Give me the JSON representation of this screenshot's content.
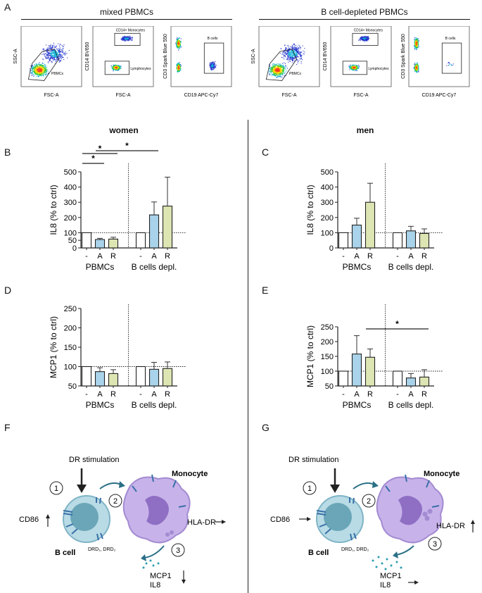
{
  "panel_letters": {
    "A": "A",
    "B": "B",
    "C": "C",
    "D": "D",
    "E": "E",
    "F": "F",
    "G": "G"
  },
  "flow": {
    "left_title": "mixed PBMCs",
    "right_title": "B cell-depleted PBMCs",
    "plots": [
      {
        "x_label": "FSC-A",
        "y_label": "SSC-A",
        "gate_label": "PBMCs"
      },
      {
        "x_label": "FSC-A",
        "y_label": "CD14 BV650",
        "gate_label": "CD14+ Monocytes",
        "gate_label2": "Lymphocytes"
      },
      {
        "x_label": "CD19 APC-Cy7",
        "y_label": "CD3 Spark Blue 550",
        "gate_label": "B cells"
      },
      {
        "x_label": "FSC-A",
        "y_label": "SSC-A",
        "gate_label": "PBMCs"
      },
      {
        "x_label": "FSC-A",
        "y_label": "CD14 BV650",
        "gate_label": "CD14+ Monocytes",
        "gate_label2": "Lymphocytes"
      },
      {
        "x_label": "CD19 APC-Cy7",
        "y_label": "CD3 Spark Blue 550",
        "gate_label": "B cells"
      }
    ]
  },
  "sex_labels": {
    "women": "women",
    "men": "men"
  },
  "chart_data": [
    {
      "panel": "B",
      "type": "bar",
      "ylabel": "IL8 (% to ctrl)",
      "ylim": [
        0,
        500
      ],
      "yticks": [
        0,
        50,
        100,
        200,
        300,
        400,
        500
      ],
      "categories": [
        "-",
        "A",
        "R",
        "-",
        "A",
        "R"
      ],
      "groups": [
        "PBMCs",
        "B cells depl."
      ],
      "values": [
        100,
        55,
        58,
        100,
        217,
        275
      ],
      "errors": [
        0,
        8,
        12,
        0,
        85,
        190
      ],
      "significance": [
        "*",
        "*",
        "*"
      ]
    },
    {
      "panel": "C",
      "type": "bar",
      "ylabel": "IL8 (% to ctrl)",
      "ylim": [
        0,
        500
      ],
      "yticks": [
        0,
        100,
        200,
        300,
        400,
        500
      ],
      "categories": [
        "-",
        "A",
        "R",
        "-",
        "A",
        "R"
      ],
      "groups": [
        "PBMCs",
        "B cells depl."
      ],
      "values": [
        100,
        150,
        300,
        100,
        112,
        95
      ],
      "errors": [
        0,
        45,
        125,
        0,
        30,
        30
      ],
      "significance": []
    },
    {
      "panel": "D",
      "type": "bar",
      "ylabel": "MCP1 (% to ctrl)",
      "ylim": [
        50,
        250
      ],
      "yticks": [
        50,
        100,
        150,
        200,
        250
      ],
      "categories": [
        "-",
        "A",
        "R",
        "-",
        "A",
        "R"
      ],
      "groups": [
        "PBMCs",
        "B cells depl."
      ],
      "values": [
        100,
        87,
        82,
        100,
        93,
        95
      ],
      "errors": [
        0,
        10,
        10,
        0,
        18,
        17
      ],
      "significance": []
    },
    {
      "panel": "E",
      "type": "bar",
      "ylabel": "MCP1 (% to ctrl)",
      "ylim": [
        50,
        250
      ],
      "yticks": [
        50,
        100,
        150,
        200,
        250
      ],
      "categories": [
        "-",
        "A",
        "R",
        "-",
        "A",
        "R"
      ],
      "groups": [
        "PBMCs",
        "B cells depl."
      ],
      "values": [
        100,
        158,
        147,
        100,
        77,
        80
      ],
      "errors": [
        0,
        62,
        28,
        0,
        15,
        25
      ],
      "significance": [
        "*"
      ]
    }
  ],
  "schematic": {
    "F": {
      "stimulation": "DR stimulation",
      "monocyte": "Monocyte",
      "bcell": "B cell",
      "cd86": "CD86",
      "hladr": "HLA-DR",
      "drd": "DRD₁, DRD₂",
      "mcp1": "MCP1",
      "il8": "IL8",
      "steps": [
        "1",
        "2",
        "3"
      ]
    },
    "G": {
      "stimulation": "DR stimulation",
      "monocyte": "Monocyte",
      "bcell": "B cell",
      "cd86": "CD86",
      "hladr": "HLA-DR",
      "drd": "DRD₁, DRD₂",
      "mcp1": "MCP1",
      "il8": "IL8",
      "steps": [
        "1",
        "2",
        "3"
      ]
    }
  },
  "colors": {
    "control": "#ffffff",
    "agonist": "#a9d3ea",
    "antagonist": "#dde6b3",
    "cell_blue": "#8fc7d8",
    "monocyte": "#b89be0"
  }
}
